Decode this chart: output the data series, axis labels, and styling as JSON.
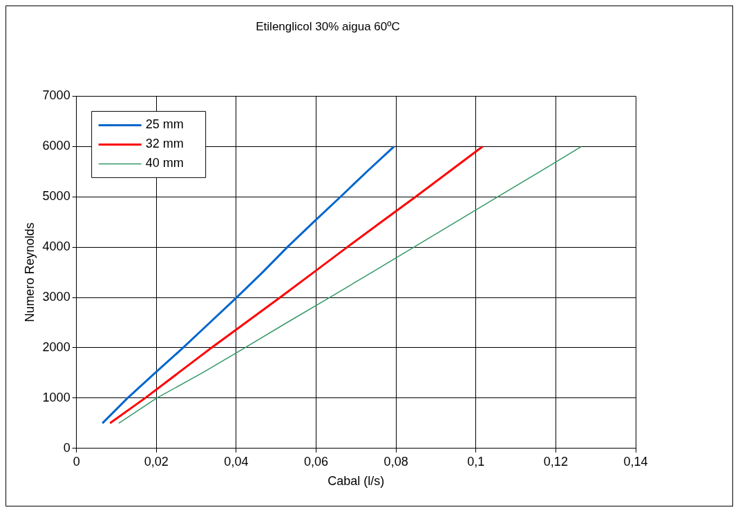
{
  "chart_data": {
    "type": "line",
    "title": "Etilenglicol 30% aigua 60ºC",
    "xlabel": "Cabal (l/s)",
    "ylabel": "Numero Reynolds",
    "xlim": [
      0,
      0.14
    ],
    "xticks": [
      {
        "value": 0,
        "label": "0"
      },
      {
        "value": 0.02,
        "label": "0,02"
      },
      {
        "value": 0.04,
        "label": "0,04"
      },
      {
        "value": 0.06,
        "label": "0,06"
      },
      {
        "value": 0.08,
        "label": "0,08"
      },
      {
        "value": 0.1,
        "label": "0,1"
      },
      {
        "value": 0.12,
        "label": "0,12"
      },
      {
        "value": 0.14,
        "label": "0,14"
      }
    ],
    "ylim": [
      0,
      7000
    ],
    "yticks": [
      0,
      1000,
      2000,
      3000,
      4000,
      5000,
      6000,
      7000
    ],
    "grid": true,
    "legend": "top left",
    "marker": "none",
    "series": [
      {
        "name": "25 mm",
        "color": "#0066cc",
        "x": [
          0.0065,
          0.0128,
          0.0197,
          0.0267,
          0.0334,
          0.0401,
          0.0466,
          0.0528,
          0.0594,
          0.0661,
          0.0727,
          0.0795
        ],
        "values": [
          500,
          1000,
          1500,
          2000,
          2500,
          3000,
          3500,
          4000,
          4500,
          5000,
          5500,
          6000
        ]
      },
      {
        "name": "32 mm",
        "color": "#ff0000",
        "x": [
          0.0084,
          0.0172,
          0.0255,
          0.0338,
          0.0424,
          0.051,
          0.0594,
          0.0678,
          0.0763,
          0.0849,
          0.0933,
          0.1017
        ],
        "values": [
          500,
          1000,
          1500,
          2000,
          2500,
          3000,
          3500,
          4000,
          4500,
          5000,
          5500,
          6000
        ]
      },
      {
        "name": "40 mm",
        "color": "#339966",
        "x": [
          0.0106,
          0.0201,
          0.0315,
          0.0422,
          0.0527,
          0.0634,
          0.074,
          0.0845,
          0.095,
          0.1055,
          0.116,
          0.1264
        ],
        "values": [
          500,
          1000,
          1500,
          2000,
          2500,
          3000,
          3500,
          4000,
          4500,
          5000,
          5500,
          6000
        ]
      }
    ]
  }
}
